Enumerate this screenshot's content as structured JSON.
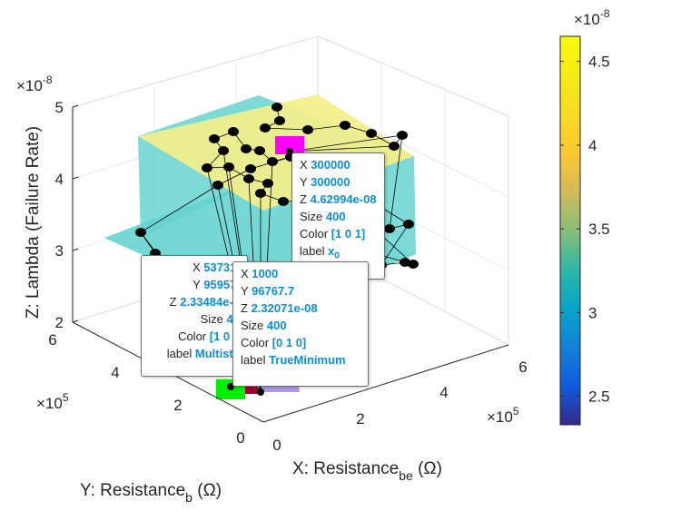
{
  "chart_data": {
    "type": "scatter3d",
    "xlabel_main": "X: Resistance",
    "xlabel_sub": "be",
    "xlabel_unit": "(Ω)",
    "ylabel_main": "Y: Resistance",
    "ylabel_sub": "b",
    "ylabel_unit": "(Ω)",
    "zlabel": "Z: Lambda (Failure Rate)",
    "xlim": [
      0,
      600000
    ],
    "ylim": [
      0,
      600000
    ],
    "zlim": [
      2e-08,
      5e-08
    ],
    "x_ticks": [
      "0",
      "2",
      "4",
      "6"
    ],
    "y_ticks": [
      "0",
      "2",
      "4",
      "6"
    ],
    "z_ticks": [
      "2",
      "3",
      "4",
      "5"
    ],
    "x_exponent": "×10",
    "x_exponent_power": "5",
    "y_exponent": "×10",
    "y_exponent_power": "5",
    "z_exponent": "×10",
    "z_exponent_power": "-8",
    "colorbar": {
      "range": [
        2.33e-08,
        4.65e-08
      ],
      "ticks": [
        "2.5",
        "3",
        "3.5",
        "4",
        "4.5"
      ],
      "tick_values": [
        2.5,
        3,
        3.5,
        4,
        4.5
      ],
      "exponent": "×10",
      "exponent_power": "-8",
      "colormap": "parula"
    },
    "special_points": [
      {
        "name": "x0",
        "x": 300000,
        "y": 300000,
        "z": 4.62994e-08,
        "color": "#ff00ff"
      },
      {
        "name": "Multistart",
        "x": 53731,
        "y": 95957,
        "z": 2.33484e-08,
        "color": "#ff0000"
      },
      {
        "name": "TrueMinimum",
        "x": 1000,
        "y": 96767.7,
        "z": 2.32071e-08,
        "color": "#00ff00"
      }
    ]
  },
  "tooltips": [
    {
      "id": "x0",
      "rows": [
        {
          "key": "X",
          "value": "300000"
        },
        {
          "key": "Y",
          "value": "300000"
        },
        {
          "key": "Z",
          "value": "4.62994e-08"
        },
        {
          "key": "Size",
          "value": "400"
        },
        {
          "key": "Color",
          "value": "[1 0 1]"
        },
        {
          "key": "label",
          "value": "x",
          "sub": "0"
        }
      ]
    },
    {
      "id": "multistart",
      "rows": [
        {
          "key": "X",
          "value": "53731."
        },
        {
          "key": "Y",
          "value": "95957."
        },
        {
          "key": "Z",
          "value": "2.33484e-0"
        },
        {
          "key": "Size",
          "value": "40"
        },
        {
          "key": "Color",
          "value": "[1 0 0"
        },
        {
          "key": "label",
          "value": "Multista"
        }
      ]
    },
    {
      "id": "trueminimum",
      "rows": [
        {
          "key": "X",
          "value": "1000"
        },
        {
          "key": "Y",
          "value": "96767.7"
        },
        {
          "key": "Z",
          "value": "2.32071e-08"
        },
        {
          "key": "Size",
          "value": "400"
        },
        {
          "key": "Color",
          "value": "[0 1 0]"
        },
        {
          "key": "label",
          "value": "TrueMinimum"
        }
      ]
    }
  ]
}
